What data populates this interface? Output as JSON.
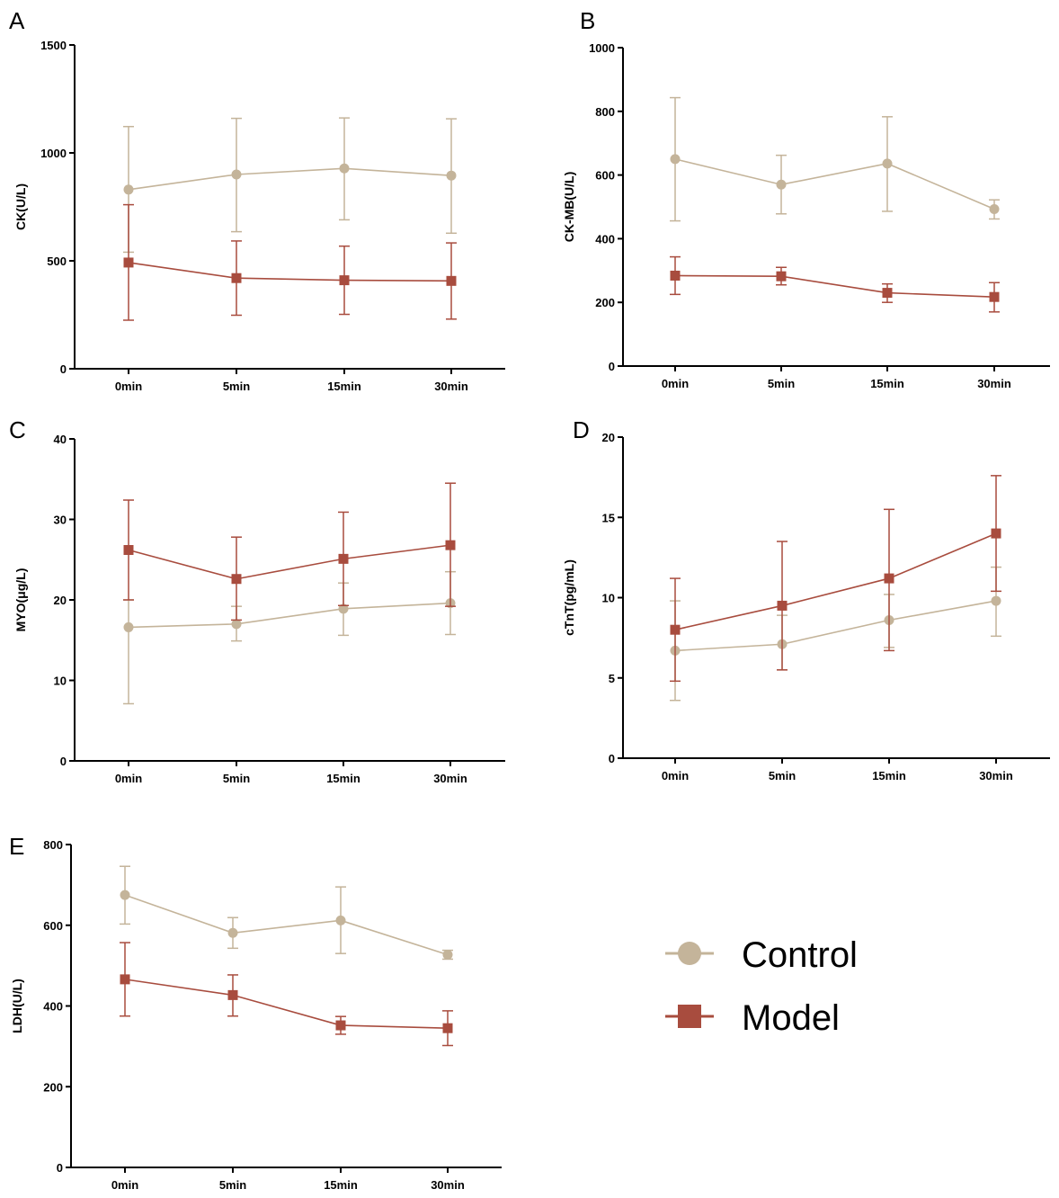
{
  "colors": {
    "control": "#c4b49a",
    "model": "#a84c3e",
    "axis": "#000000"
  },
  "legend": {
    "items": [
      {
        "label": "Control",
        "marker": "circle",
        "color": "#c4b49a"
      },
      {
        "label": "Model",
        "marker": "square",
        "color": "#a84c3e"
      }
    ]
  },
  "chart_data": [
    {
      "panel": "A",
      "type": "line",
      "ylabel": "CK(U/L)",
      "xlabel": "",
      "categories": [
        "0min",
        "5min",
        "15min",
        "30min"
      ],
      "ylim": [
        0,
        1500
      ],
      "yticks": [
        0,
        500,
        1000,
        1500
      ],
      "series": [
        {
          "name": "Control",
          "marker": "circle",
          "values": [
            830,
            900,
            928,
            895
          ],
          "err_low": [
            540,
            635,
            690,
            628
          ],
          "err_high": [
            1122,
            1160,
            1162,
            1158
          ]
        },
        {
          "name": "Model",
          "marker": "square",
          "values": [
            492,
            420,
            410,
            407
          ],
          "err_low": [
            225,
            248,
            252,
            230
          ],
          "err_high": [
            760,
            592,
            568,
            583
          ]
        }
      ]
    },
    {
      "panel": "B",
      "type": "line",
      "ylabel": "CK-MB(U/L)",
      "xlabel": "",
      "categories": [
        "0min",
        "5min",
        "15min",
        "30min"
      ],
      "ylim": [
        0,
        1000
      ],
      "yticks": [
        0,
        200,
        400,
        600,
        800,
        1000
      ],
      "series": [
        {
          "name": "Control",
          "marker": "circle",
          "values": [
            650,
            570,
            636,
            493
          ],
          "err_low": [
            456,
            478,
            486,
            462
          ],
          "err_high": [
            843,
            662,
            783,
            522
          ]
        },
        {
          "name": "Model",
          "marker": "square",
          "values": [
            284,
            282,
            230,
            217
          ],
          "err_low": [
            225,
            255,
            200,
            170
          ],
          "err_high": [
            343,
            310,
            258,
            262
          ]
        }
      ]
    },
    {
      "panel": "C",
      "type": "line",
      "ylabel": "MYO(μg/L)",
      "xlabel": "",
      "categories": [
        "0min",
        "5min",
        "15min",
        "30min"
      ],
      "ylim": [
        0,
        40
      ],
      "yticks": [
        0,
        10,
        20,
        30,
        40
      ],
      "series": [
        {
          "name": "Control",
          "marker": "circle",
          "values": [
            16.6,
            17.0,
            18.9,
            19.6
          ],
          "err_low": [
            7.1,
            14.9,
            15.6,
            15.7
          ],
          "err_high": [
            20.0,
            19.2,
            22.1,
            23.5
          ]
        },
        {
          "name": "Model",
          "marker": "square",
          "values": [
            26.2,
            22.6,
            25.1,
            26.8
          ],
          "err_low": [
            20.0,
            17.5,
            19.3,
            19.2
          ],
          "err_high": [
            32.4,
            27.8,
            30.9,
            34.5
          ]
        }
      ]
    },
    {
      "panel": "D",
      "type": "line",
      "ylabel": "cTnT(pg/mL)",
      "xlabel": "",
      "categories": [
        "0min",
        "5min",
        "15min",
        "30min"
      ],
      "ylim": [
        0,
        20
      ],
      "yticks": [
        0,
        5,
        10,
        15,
        20
      ],
      "series": [
        {
          "name": "Control",
          "marker": "circle",
          "values": [
            6.7,
            7.1,
            8.6,
            9.8
          ],
          "err_low": [
            3.6,
            5.5,
            6.9,
            7.6
          ],
          "err_high": [
            9.8,
            8.9,
            10.2,
            11.9
          ]
        },
        {
          "name": "Model",
          "marker": "square",
          "values": [
            8.0,
            9.5,
            11.2,
            14.0
          ],
          "err_low": [
            4.8,
            5.5,
            6.7,
            10.4
          ],
          "err_high": [
            11.2,
            13.5,
            15.5,
            17.6
          ]
        }
      ]
    },
    {
      "panel": "E",
      "type": "line",
      "ylabel": "LDH(U/L)",
      "xlabel": "",
      "categories": [
        "0min",
        "5min",
        "15min",
        "30min"
      ],
      "ylim": [
        0,
        800
      ],
      "yticks": [
        0,
        200,
        400,
        600,
        800
      ],
      "series": [
        {
          "name": "Control",
          "marker": "circle",
          "values": [
            675,
            581,
            612,
            527
          ],
          "err_low": [
            603,
            543,
            530,
            516
          ],
          "err_high": [
            746,
            619,
            695,
            538
          ]
        },
        {
          "name": "Model",
          "marker": "square",
          "values": [
            466,
            427,
            352,
            345
          ],
          "err_low": [
            375,
            375,
            330,
            302
          ],
          "err_high": [
            557,
            477,
            374,
            388
          ]
        }
      ]
    }
  ]
}
